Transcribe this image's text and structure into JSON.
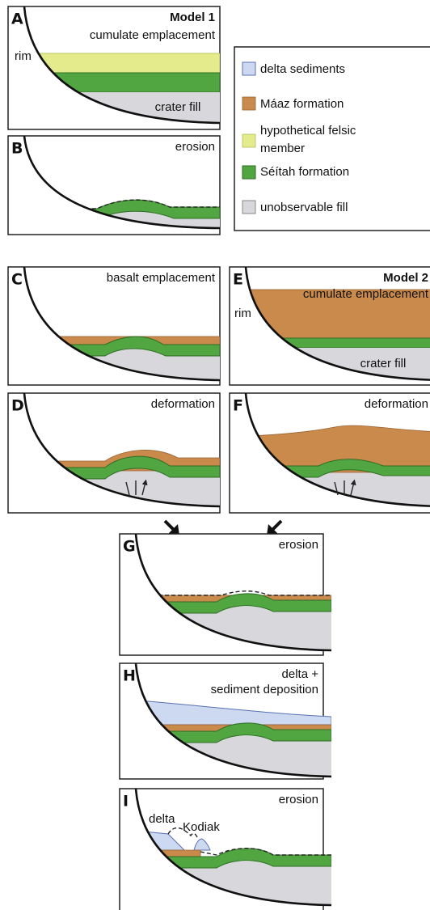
{
  "panels": [
    {
      "letter": "A",
      "lines": [
        "Model 1",
        "cumulate emplacement"
      ],
      "rim": "rim",
      "fill": "crater fill"
    },
    {
      "letter": "B",
      "lines": [
        "erosion"
      ]
    },
    {
      "letter": "C",
      "lines": [
        "basalt emplacement"
      ]
    },
    {
      "letter": "D",
      "lines": [
        "deformation"
      ]
    },
    {
      "letter": "E",
      "lines": [
        "Model 2",
        "cumulate emplacement"
      ],
      "rim": "rim",
      "fill": "crater fill"
    },
    {
      "letter": "F",
      "lines": [
        "deformation"
      ]
    },
    {
      "letter": "G",
      "lines": [
        "erosion"
      ]
    },
    {
      "letter": "H",
      "lines": [
        "delta +",
        "sediment deposition"
      ]
    },
    {
      "letter": "I",
      "lines": [
        "erosion"
      ],
      "delta": "delta",
      "kodiak": "Kodiak"
    }
  ],
  "legend": [
    {
      "lines": [
        "delta sediments"
      ]
    },
    {
      "lines": [
        "Máaz formation"
      ]
    },
    {
      "lines": [
        "hypothetical felsic",
        "member"
      ]
    },
    {
      "lines": [
        "Séítah formation"
      ]
    },
    {
      "lines": [
        "unobservable fill"
      ]
    }
  ]
}
